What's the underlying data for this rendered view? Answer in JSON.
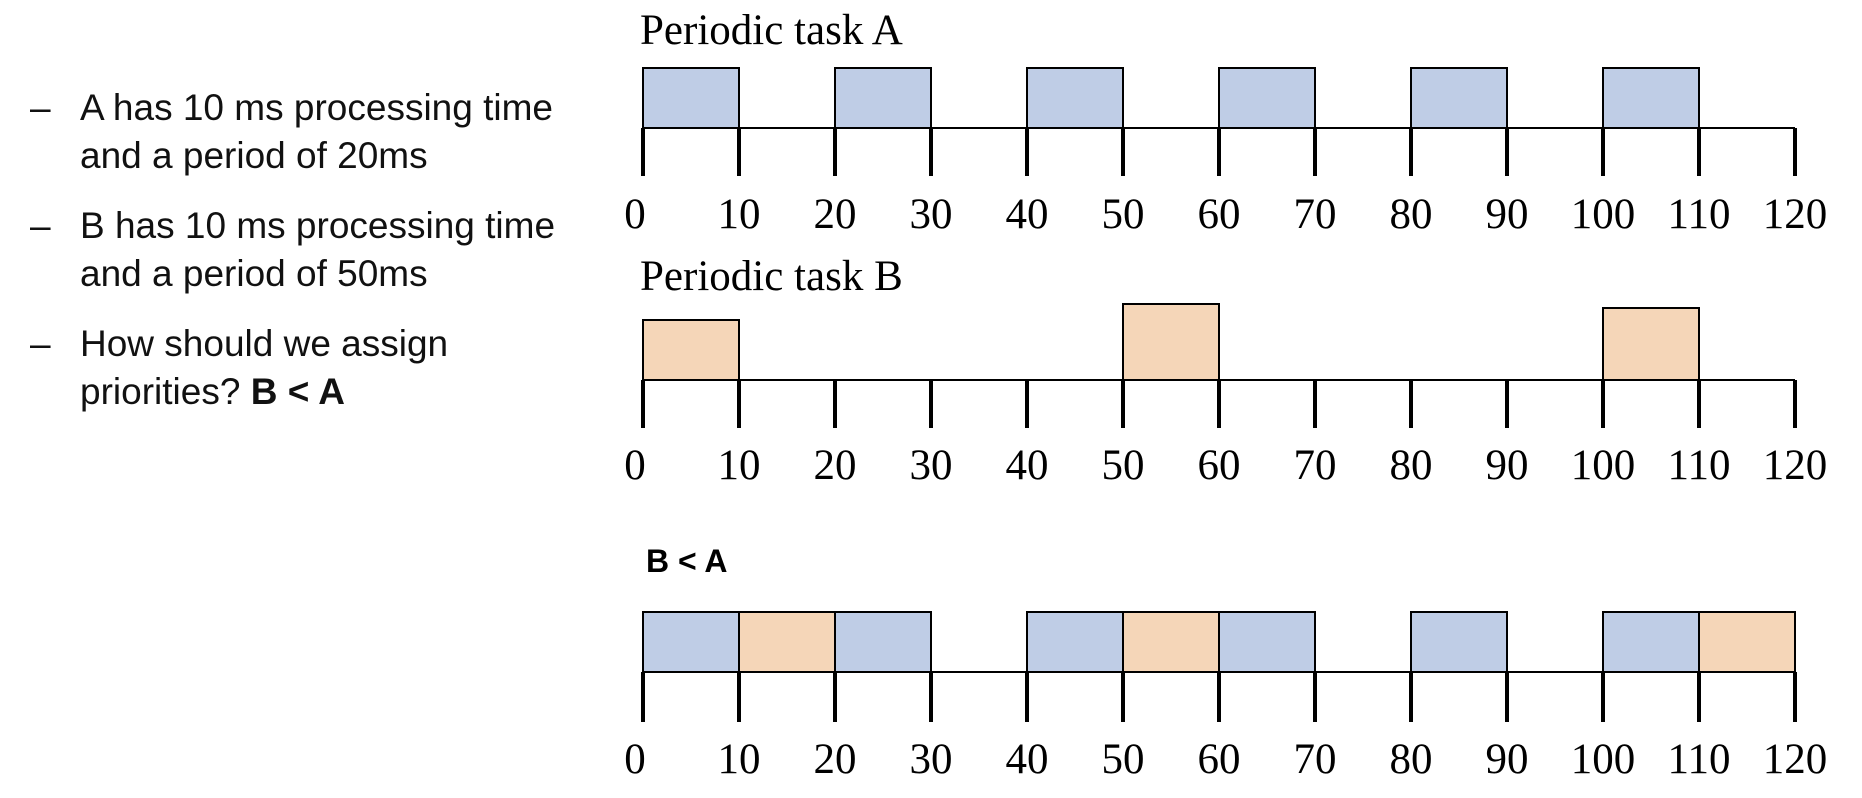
{
  "bullets": [
    {
      "text": "A has 10 ms processing time and a period of 20ms",
      "bold": ""
    },
    {
      "text": "B has 10 ms processing time and a period of 50ms",
      "bold": ""
    },
    {
      "text": "How should we assign priorities? ",
      "bold": "B < A"
    }
  ],
  "bullet_marker": "–",
  "colors": {
    "task_a": "#bfcde6",
    "task_b": "#f5d6b8",
    "line": "#000000"
  },
  "timelines": [
    {
      "title": "Periodic task A",
      "title_style": "serif",
      "blocks": [
        {
          "start": 0,
          "end": 10,
          "task": "A"
        },
        {
          "start": 20,
          "end": 30,
          "task": "A"
        },
        {
          "start": 40,
          "end": 50,
          "task": "A"
        },
        {
          "start": 60,
          "end": 70,
          "task": "A"
        },
        {
          "start": 80,
          "end": 90,
          "task": "A"
        },
        {
          "start": 100,
          "end": 110,
          "task": "A"
        }
      ]
    },
    {
      "title": "Periodic task B",
      "title_style": "serif",
      "blocks": [
        {
          "start": 0,
          "end": 10,
          "task": "B"
        },
        {
          "start": 50,
          "end": 60,
          "task": "B"
        },
        {
          "start": 100,
          "end": 110,
          "task": "B"
        }
      ]
    },
    {
      "title": "B < A",
      "title_style": "bold",
      "blocks": [
        {
          "start": 0,
          "end": 10,
          "task": "A"
        },
        {
          "start": 10,
          "end": 20,
          "task": "B"
        },
        {
          "start": 20,
          "end": 30,
          "task": "A"
        },
        {
          "start": 40,
          "end": 50,
          "task": "A"
        },
        {
          "start": 50,
          "end": 60,
          "task": "B"
        },
        {
          "start": 60,
          "end": 70,
          "task": "A"
        },
        {
          "start": 80,
          "end": 90,
          "task": "A"
        },
        {
          "start": 100,
          "end": 110,
          "task": "A"
        },
        {
          "start": 110,
          "end": 120,
          "task": "B"
        }
      ]
    }
  ],
  "ticks": [
    "0",
    "10",
    "20",
    "30",
    "40",
    "50",
    "60",
    "70",
    "80",
    "90",
    "100",
    "110",
    "120"
  ]
}
